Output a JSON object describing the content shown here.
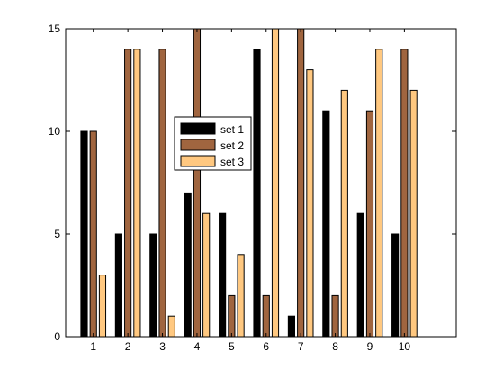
{
  "chart_data": {
    "type": "bar",
    "categories": [
      "1",
      "2",
      "3",
      "4",
      "5",
      "6",
      "7",
      "8",
      "9",
      "10"
    ],
    "series": [
      {
        "name": "set 1",
        "color": "#000000",
        "values": [
          10,
          5,
          5,
          7,
          6,
          14,
          1,
          11,
          6,
          5
        ]
      },
      {
        "name": "set 2",
        "color": "#a0653f",
        "values": [
          10,
          14,
          14,
          15,
          2,
          2,
          15,
          2,
          11,
          14
        ]
      },
      {
        "name": "set 3",
        "color": "#ffc880",
        "values": [
          3,
          14,
          1,
          6,
          4,
          15,
          13,
          12,
          14,
          12
        ]
      }
    ],
    "xlim": [
      0.2,
      11.5
    ],
    "ylim": [
      0,
      15
    ],
    "yticks": [
      0,
      5,
      10,
      15
    ],
    "grid": false,
    "legend_position": "center-left"
  }
}
